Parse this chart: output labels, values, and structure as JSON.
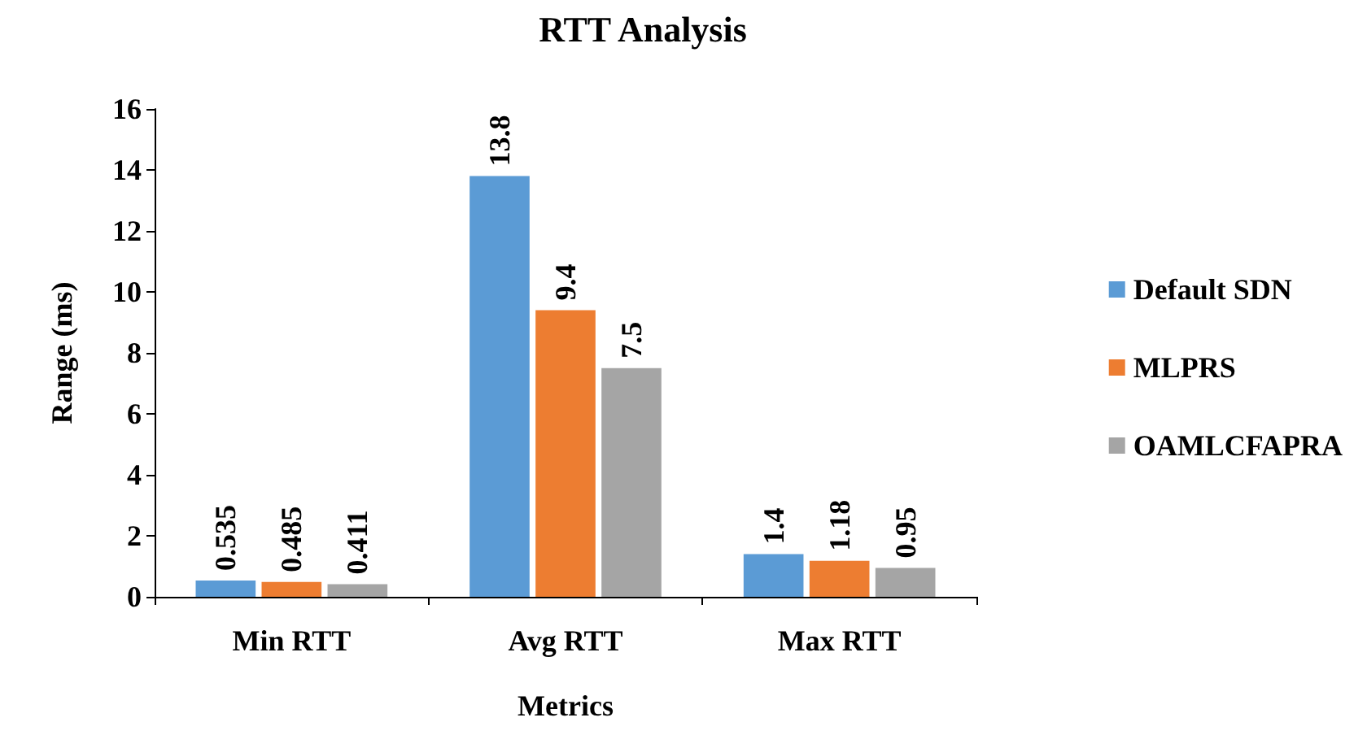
{
  "chart_data": {
    "type": "bar",
    "title": "RTT Analysis",
    "xlabel": "Metrics",
    "ylabel": "Range (ms)",
    "categories": [
      "Min RTT",
      "Avg RTT",
      "Max RTT"
    ],
    "series": [
      {
        "name": "Default SDN",
        "color": "#5b9bd5",
        "values": [
          0.535,
          13.8,
          1.4
        ]
      },
      {
        "name": "MLPRS",
        "color": "#ed7d31",
        "values": [
          0.485,
          9.4,
          1.18
        ]
      },
      {
        "name": "OAMLCFAPRA",
        "color": "#a5a5a5",
        "values": [
          0.411,
          7.5,
          0.95
        ]
      }
    ],
    "ylim": [
      0,
      16
    ],
    "yticks": [
      0,
      2,
      4,
      6,
      8,
      10,
      12,
      14,
      16
    ],
    "grid": false,
    "legend": "right",
    "data_labels": true
  }
}
